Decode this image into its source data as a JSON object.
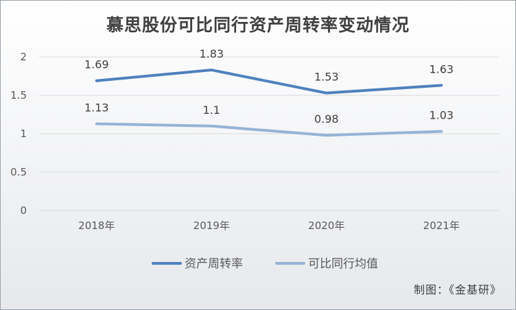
{
  "title": "慕思股份可比同行资产周转率变动情况",
  "source_note": "制图：《金基研》",
  "chart_data": {
    "type": "line",
    "categories": [
      "2018年",
      "2019年",
      "2020年",
      "2021年"
    ],
    "series": [
      {
        "name": "资产周转率",
        "values": [
          1.69,
          1.83,
          1.53,
          1.63
        ],
        "color": "#4f81bd"
      },
      {
        "name": "可比同行均值",
        "values": [
          1.13,
          1.1,
          0.98,
          1.03
        ],
        "color": "#95b3d7"
      }
    ],
    "y_ticks": [
      "0",
      "0.5",
      "1",
      "1.5",
      "2"
    ],
    "ylim": [
      0,
      2
    ],
    "grid": true,
    "legend_position": "bottom"
  }
}
